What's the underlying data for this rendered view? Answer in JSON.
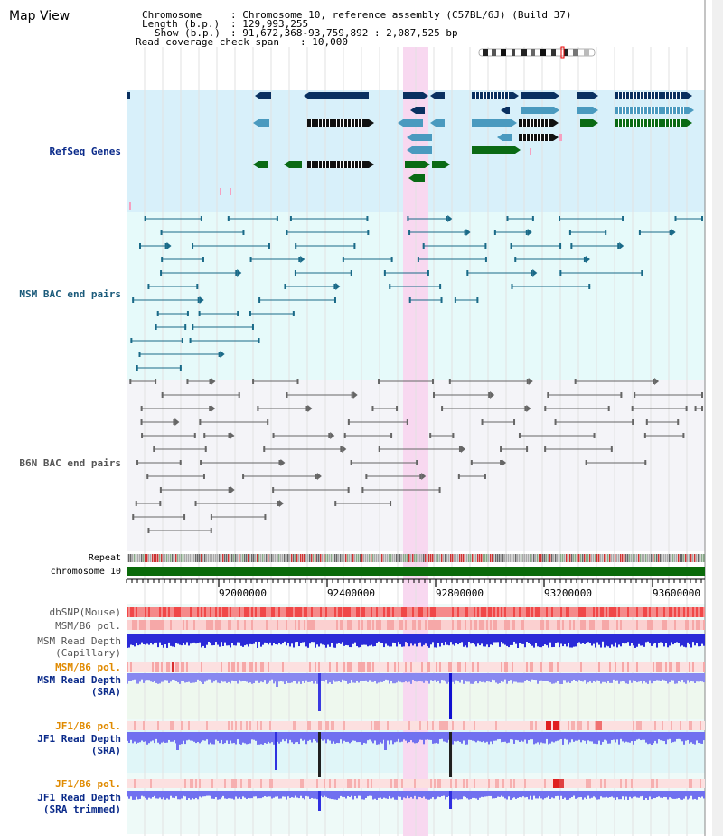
{
  "page": {
    "title": "Map View"
  },
  "header": {
    "chromosome_key": "Chromosome",
    "chromosome_val": ": Chromosome 10, reference assembly (C57BL/6J) (Build 37)",
    "length_key": "Length (b.p.)",
    "length_val": ": 129,993,255",
    "show_key": "Show (b.p.)",
    "show_val": ": 91,672,368-93,759,892 : 2,087,525 bp",
    "coverage_key": "Read coverage check span",
    "coverage_val": ": 10,000"
  },
  "tracks": {
    "refseq": "RefSeq Genes",
    "msm_bac": "MSM BAC end pairs",
    "b6n_bac": "B6N BAC end pairs",
    "repeat": "Repeat",
    "chromosome": "chromosome 10",
    "dbsnp": "dbSNP(Mouse)",
    "msm_b6_pol": "MSM/B6 pol.",
    "msm_rd_cap_1": "MSM Read Depth",
    "msm_rd_cap_2": "(Capillary)",
    "msm_b6_pol_2": "MSM/B6 pol.",
    "msm_rd_sra_1": "MSM Read Depth",
    "msm_rd_sra_2": "(SRA)",
    "jf1_b6_pol": "JF1/B6 pol.",
    "jf1_rd_sra_1": "JF1 Read Depth",
    "jf1_rd_sra_2": "(SRA)",
    "jf1_b6_pol_2": "JF1/B6 pol.",
    "jf1_rd_trim_1": "JF1 Read Depth",
    "jf1_rd_trim_2": "(SRA trimmed)"
  },
  "axis": {
    "ticks": [
      "92000000",
      "92400000",
      "92800000",
      "93200000",
      "93600000"
    ]
  },
  "colors": {
    "refseq_bg": "#d8f0fa",
    "bac_bg": "#e6fafa",
    "highlight": "#f8d8f0",
    "gene_navy": "#0a3060",
    "gene_teal": "#4a9abf",
    "gene_green": "#0a6a14",
    "msm_line": "#1a6a88",
    "b6n_line": "#666666",
    "chromosome_bar": "#0a6a0a",
    "label_blue": "#0a2a8a",
    "label_teal": "#1a5a7a",
    "label_orange": "#e08a00",
    "label_gray": "#555555"
  }
}
